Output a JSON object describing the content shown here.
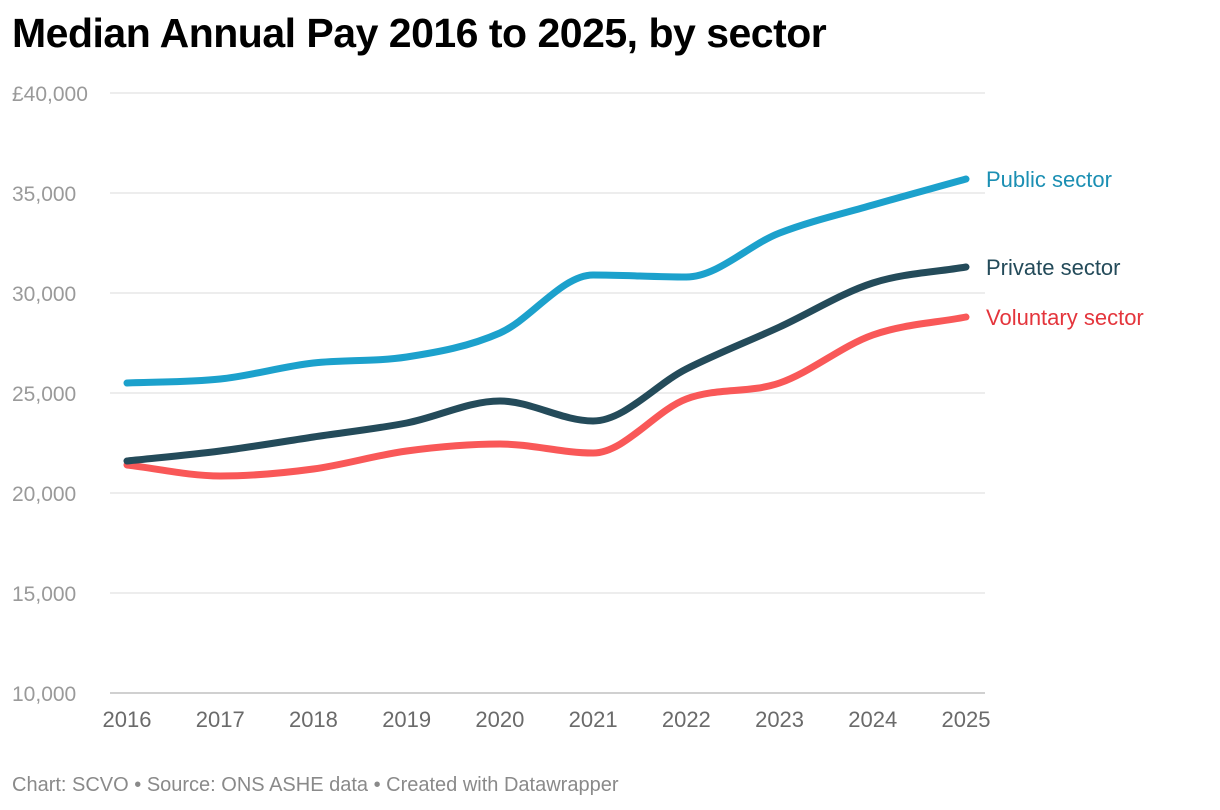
{
  "title": "Median Annual Pay 2016 to 2025, by sector",
  "footer": "Chart: SCVO • Source: ONS ASHE data • Created with Datawrapper",
  "chart_data": {
    "type": "line",
    "x": [
      "2016",
      "2017",
      "2018",
      "2019",
      "2020",
      "2021",
      "2022",
      "2023",
      "2024",
      "2025"
    ],
    "ylim": [
      10000,
      40000
    ],
    "yticks": [
      10000,
      15000,
      20000,
      25000,
      30000,
      35000,
      40000
    ],
    "ytick_labels": [
      "10,000",
      "15,000",
      "20,000",
      "25,000",
      "30,000",
      "35,000",
      "£40,000"
    ],
    "grid": true,
    "legend": "direct labels at line ends",
    "series": [
      {
        "name": "Public sector",
        "color": "#1ca1cc",
        "label_color": "#1b8fb3",
        "values": [
          25500,
          25700,
          26500,
          26800,
          28000,
          30900,
          30800,
          33000,
          34400,
          35700
        ]
      },
      {
        "name": "Private sector",
        "color": "#244b5a",
        "label_color": "#244b5a",
        "values": [
          21600,
          22100,
          22800,
          23500,
          24600,
          23600,
          26200,
          28300,
          30500,
          31300
        ]
      },
      {
        "name": "Voluntary sector",
        "color": "#f95858",
        "label_color": "#e4353c",
        "values": [
          21400,
          20850,
          21200,
          22100,
          22450,
          22000,
          24700,
          25500,
          27900,
          28800
        ]
      }
    ]
  }
}
